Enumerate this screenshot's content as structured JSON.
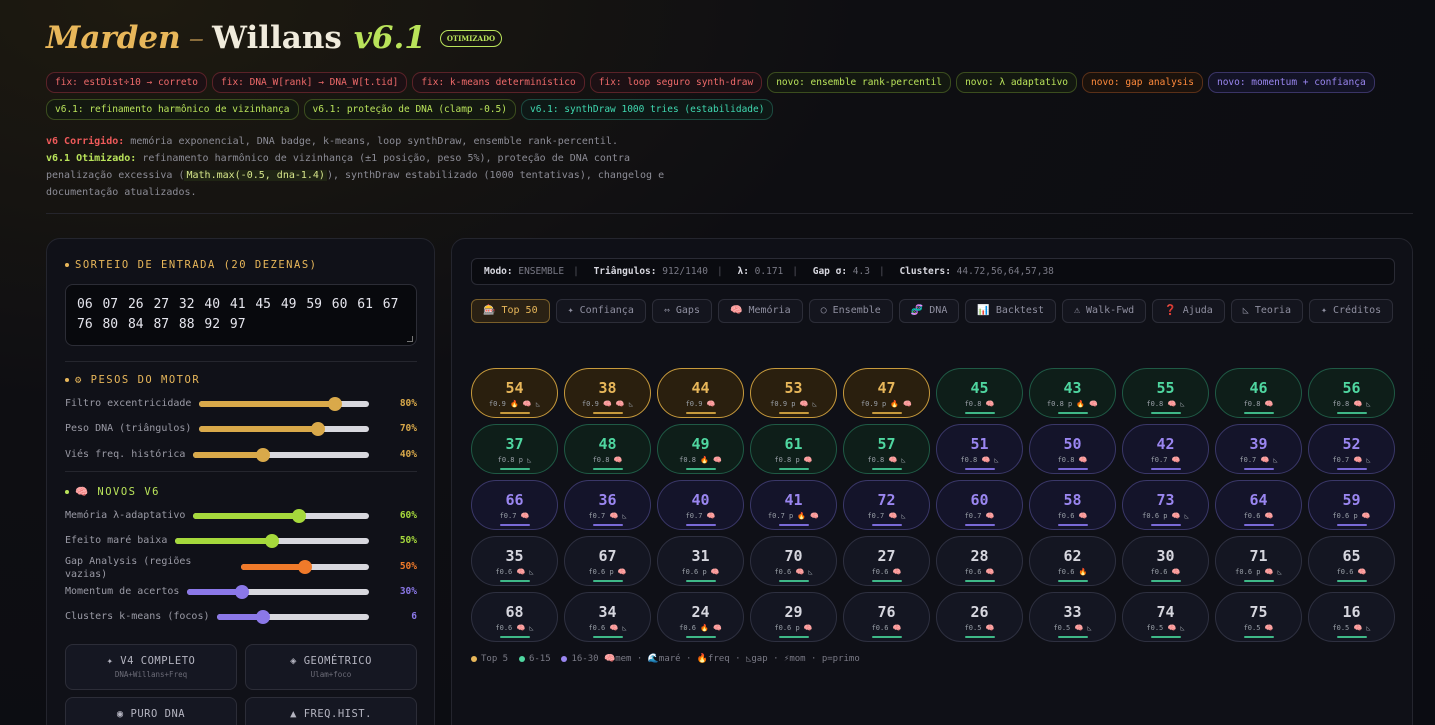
{
  "header": {
    "title_part1": "Marden",
    "title_dash": "–",
    "title_part2": "Willans",
    "version": "v6.1",
    "badge": "OTIMIZADO"
  },
  "tags": [
    {
      "text": "fix: estDist÷10 → correto",
      "kind": "red"
    },
    {
      "text": "fix: DNA_W[rank] → DNA_W[t.tid]",
      "kind": "red"
    },
    {
      "text": "fix: k-means determinístico",
      "kind": "red"
    },
    {
      "text": "fix: loop seguro synth-draw",
      "kind": "red"
    },
    {
      "text": "novo: ensemble rank-percentil",
      "kind": "green"
    },
    {
      "text": "novo: λ adaptativo",
      "kind": "green"
    },
    {
      "text": "novo: gap analysis",
      "kind": "orange"
    },
    {
      "text": "novo: momentum + confiança",
      "kind": "purple"
    },
    {
      "text": "v6.1: refinamento harmônico de vizinhança",
      "kind": "green"
    },
    {
      "text": "v6.1: proteção de DNA (clamp -0.5)",
      "kind": "green"
    },
    {
      "text": "v6.1: synthDraw 1000 tries (estabilidade)",
      "kind": "teal"
    }
  ],
  "notes": {
    "v6_label": "v6 Corrigido:",
    "v6_text": " memória exponencial, DNA badge, k-means, loop synthDraw, ensemble rank-percentil.",
    "v61_label": "v6.1 Otimizado:",
    "v61_text_a": " refinamento harmônico de vizinhança (±1 posição, peso 5%), proteção de DNA contra penalização excessiva (",
    "v61_code": "Math.max(-0.5, dna-1.4)",
    "v61_text_b": "), synthDraw estabilizado (1000 tentativas), changelog e documentação atualizados."
  },
  "left": {
    "input_title": "SORTEIO DE ENTRADA (20 DEZENAS)",
    "input_value": "06 07 26 27 32 40 41 45 49 59 60 61 67 76 80 84 87 88 92 97",
    "weights_title": "⚙ PESOS DO MOTOR",
    "weights": [
      {
        "label": "Filtro excentricidade",
        "value": 80,
        "display": "80%",
        "color": "#d9a94a"
      },
      {
        "label": "Peso DNA (triângulos)",
        "value": 70,
        "display": "70%",
        "color": "#d9a94a"
      },
      {
        "label": "Viés freq. histórica",
        "value": 40,
        "display": "40%",
        "color": "#d9a94a"
      }
    ],
    "v6_title": "🧠 NOVOS V6",
    "v6_sliders": [
      {
        "label": "Memória λ-adaptativo",
        "value": 60,
        "display": "60%",
        "color": "#a6d93c"
      },
      {
        "label": "Efeito maré baixa",
        "value": 50,
        "display": "50%",
        "color": "#a6d93c"
      },
      {
        "label": "Gap Analysis (regiões vazias)",
        "value": 50,
        "display": "50%",
        "color": "#f07a2a"
      },
      {
        "label": "Momentum de acertos",
        "value": 30,
        "display": "30%",
        "color": "#8b78e8"
      },
      {
        "label": "Clusters k-means (focos)",
        "value": 30,
        "display": "6",
        "color": "#8b78e8"
      }
    ],
    "modes": [
      {
        "label": "✦ V4 COMPLETO",
        "sub": "DNA+Willans+Freq"
      },
      {
        "label": "◈ GEOMÉTRICO",
        "sub": "Ulam+foco"
      },
      {
        "label": "◉ PURO DNA",
        "sub": ""
      },
      {
        "label": "▲ FREQ.HIST.",
        "sub": ""
      }
    ]
  },
  "stats": {
    "mode_label": "Modo:",
    "mode_value": "ENSEMBLE",
    "tri_label": "Triângulos:",
    "tri_value": "912/1140",
    "lambda_label": "λ:",
    "lambda_value": "0.171",
    "gap_label": "Gap σ:",
    "gap_value": "4.3",
    "clusters_label": "Clusters:",
    "clusters_value": "44.72,56,64,57,38"
  },
  "tabs": [
    {
      "label": "🎰 Top 50",
      "active": true
    },
    {
      "label": "✦ Confiança"
    },
    {
      "label": "⇔ Gaps"
    },
    {
      "label": "🧠 Memória"
    },
    {
      "label": "○ Ensemble"
    },
    {
      "label": "🧬 DNA"
    },
    {
      "label": "📊 Backtest"
    },
    {
      "label": "⚠ Walk-Fwd"
    },
    {
      "label": "❓ Ajuda"
    },
    {
      "label": "◺ Teoria"
    },
    {
      "label": "✦ Créditos"
    }
  ],
  "numbers": [
    {
      "n": "54",
      "meta": "f0.9 🔥 🧠 ◺",
      "c": "gold"
    },
    {
      "n": "38",
      "meta": "f0.9 🧠 🧠 ◺",
      "c": "gold"
    },
    {
      "n": "44",
      "meta": "f0.9 🧠",
      "c": "gold"
    },
    {
      "n": "53",
      "meta": "f0.9 p 🧠 ◺",
      "c": "gold"
    },
    {
      "n": "47",
      "meta": "f0.9 p 🔥 🧠",
      "c": "gold"
    },
    {
      "n": "45",
      "meta": "f0.8 🧠",
      "c": "green"
    },
    {
      "n": "43",
      "meta": "f0.8 p 🔥 🧠",
      "c": "green"
    },
    {
      "n": "55",
      "meta": "f0.8 🧠 ◺",
      "c": "green"
    },
    {
      "n": "46",
      "meta": "f0.8 🧠",
      "c": "green"
    },
    {
      "n": "56",
      "meta": "f0.8 🧠 ◺",
      "c": "green"
    },
    {
      "n": "37",
      "meta": "f0.8 p ◺",
      "c": "green"
    },
    {
      "n": "48",
      "meta": "f0.8 🧠",
      "c": "green"
    },
    {
      "n": "49",
      "meta": "f0.8 🔥 🧠",
      "c": "green"
    },
    {
      "n": "61",
      "meta": "f0.8 p 🧠",
      "c": "green"
    },
    {
      "n": "57",
      "meta": "f0.8 🧠 ◺",
      "c": "green"
    },
    {
      "n": "51",
      "meta": "f0.8 🧠 ◺",
      "c": "purple"
    },
    {
      "n": "50",
      "meta": "f0.8 🧠",
      "c": "purple"
    },
    {
      "n": "42",
      "meta": "f0.7 🧠",
      "c": "purple"
    },
    {
      "n": "39",
      "meta": "f0.7 🧠 ◺",
      "c": "purple"
    },
    {
      "n": "52",
      "meta": "f0.7 🧠 ◺",
      "c": "purple"
    },
    {
      "n": "66",
      "meta": "f0.7 🧠",
      "c": "purple"
    },
    {
      "n": "36",
      "meta": "f0.7 🧠 ◺",
      "c": "purple"
    },
    {
      "n": "40",
      "meta": "f0.7 🧠",
      "c": "purple"
    },
    {
      "n": "41",
      "meta": "f0.7 p 🔥 🧠",
      "c": "purple"
    },
    {
      "n": "72",
      "meta": "f0.7 🧠 ◺",
      "c": "purple"
    },
    {
      "n": "60",
      "meta": "f0.7 🧠",
      "c": "purple"
    },
    {
      "n": "58",
      "meta": "f0.6 🧠",
      "c": "purple"
    },
    {
      "n": "73",
      "meta": "f0.6 p 🧠 ◺",
      "c": "purple"
    },
    {
      "n": "64",
      "meta": "f0.6 🧠",
      "c": "purple"
    },
    {
      "n": "59",
      "meta": "f0.6 p 🧠",
      "c": "purple"
    },
    {
      "n": "35",
      "meta": "f0.6 🧠 ◺",
      "c": "gray"
    },
    {
      "n": "67",
      "meta": "f0.6 p 🧠",
      "c": "gray"
    },
    {
      "n": "31",
      "meta": "f0.6 p 🧠",
      "c": "gray"
    },
    {
      "n": "70",
      "meta": "f0.6 🧠 ◺",
      "c": "gray"
    },
    {
      "n": "27",
      "meta": "f0.6 🧠",
      "c": "gray"
    },
    {
      "n": "28",
      "meta": "f0.6 🧠",
      "c": "gray"
    },
    {
      "n": "62",
      "meta": "f0.6 🔥",
      "c": "gray"
    },
    {
      "n": "30",
      "meta": "f0.6 🧠",
      "c": "gray"
    },
    {
      "n": "71",
      "meta": "f0.6 p 🧠 ◺",
      "c": "gray"
    },
    {
      "n": "65",
      "meta": "f0.6 🧠",
      "c": "gray"
    },
    {
      "n": "68",
      "meta": "f0.6 🧠 ◺",
      "c": "gray"
    },
    {
      "n": "34",
      "meta": "f0.6 🧠 ◺",
      "c": "gray"
    },
    {
      "n": "24",
      "meta": "f0.6 🔥 🧠",
      "c": "gray"
    },
    {
      "n": "29",
      "meta": "f0.6 p 🧠",
      "c": "gray"
    },
    {
      "n": "76",
      "meta": "f0.6 🧠",
      "c": "gray"
    },
    {
      "n": "26",
      "meta": "f0.5 🧠",
      "c": "gray"
    },
    {
      "n": "33",
      "meta": "f0.5 🧠 ◺",
      "c": "gray"
    },
    {
      "n": "74",
      "meta": "f0.5 🧠 ◺",
      "c": "gray"
    },
    {
      "n": "75",
      "meta": "f0.5 🧠",
      "c": "gray"
    },
    {
      "n": "16",
      "meta": "f0.5 🧠 ◺",
      "c": "gray"
    }
  ],
  "legend": {
    "top5": "Top 5",
    "r615": "6-15",
    "r1630": "16-30",
    "rest": "🧠mem · 🌊maré · 🔥freq · ◺gap · ⚡mom · p=primo"
  },
  "colors": {
    "gold": "#e8b75a",
    "green": "#4fd6a0",
    "purple": "#9a86f0",
    "lime": "#b9e35a"
  }
}
